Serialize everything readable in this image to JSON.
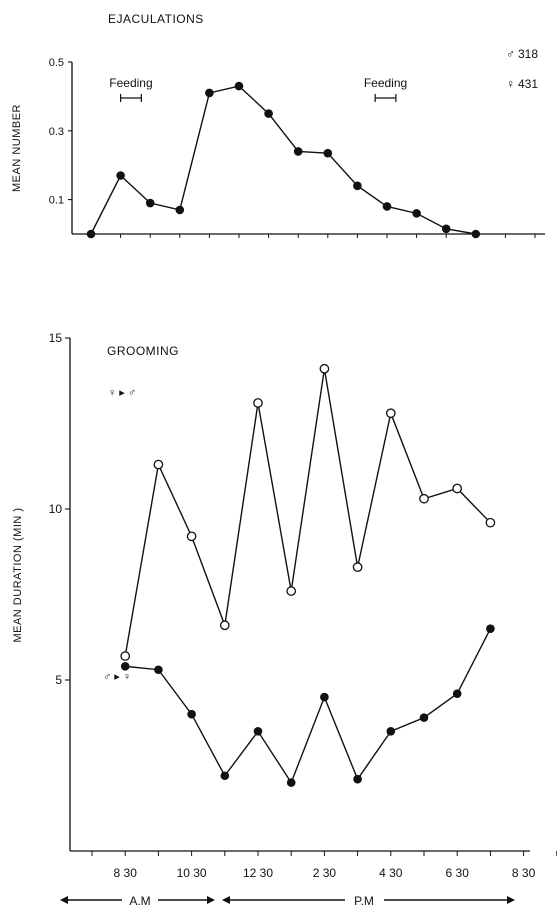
{
  "chart_data": [
    {
      "type": "line",
      "title": "EJACULATIONS",
      "ylabel": "MEAN NUMBER",
      "ylim": [
        0.0,
        0.5
      ],
      "yticks": [
        "0.5",
        "0.3",
        "0.1"
      ],
      "x_slots": 16,
      "series": [
        {
          "marker": "filled",
          "x": [
            0,
            1,
            2,
            3,
            4,
            5,
            6,
            7,
            8,
            9,
            10,
            11,
            12,
            13,
            14,
            15
          ],
          "values": [
            0.0,
            0.17,
            0.09,
            0.07,
            0.41,
            0.43,
            0.35,
            0.24,
            0.235,
            0.14,
            0.08,
            0.06,
            0.015,
            0.0,
            null,
            null
          ]
        }
      ],
      "annotations": [
        {
          "text": "Feeding",
          "span": [
            1.0,
            1.7
          ]
        },
        {
          "text": "Feeding",
          "span": [
            9.6,
            10.3
          ]
        }
      ],
      "legend": [
        {
          "symbol": "♂",
          "value": "318"
        },
        {
          "symbol": "♀",
          "value": "431"
        }
      ]
    },
    {
      "type": "line",
      "title": "GROOMING",
      "ylabel": "MEAN DURATION  (MIN )",
      "ylim": [
        0,
        15
      ],
      "yticks": [
        "15",
        "10",
        "5"
      ],
      "xticks": [
        "8 30",
        "10 30",
        "12 30",
        "2 30",
        "4 30",
        "6 30",
        "8 30"
      ],
      "period_labels": [
        "A.M",
        "P.M"
      ],
      "x_slots": 15,
      "series": [
        {
          "name": "♀ ▸ ♂",
          "marker": "open",
          "x": [
            1,
            2,
            3,
            4,
            5,
            6,
            7,
            8,
            9,
            10,
            11,
            12,
            13
          ],
          "values": [
            5.7,
            11.3,
            9.2,
            6.6,
            13.1,
            7.6,
            14.1,
            8.3,
            12.8,
            10.3,
            10.6,
            9.6,
            null
          ]
        },
        {
          "name": "♂ ▸ ♀",
          "marker": "filled",
          "x": [
            1,
            2,
            3,
            4,
            5,
            6,
            7,
            8,
            9,
            10,
            11,
            12,
            13
          ],
          "values": [
            5.4,
            5.3,
            4.0,
            2.2,
            3.5,
            2.0,
            4.5,
            2.1,
            3.5,
            3.9,
            4.6,
            6.5,
            null
          ]
        }
      ]
    }
  ]
}
